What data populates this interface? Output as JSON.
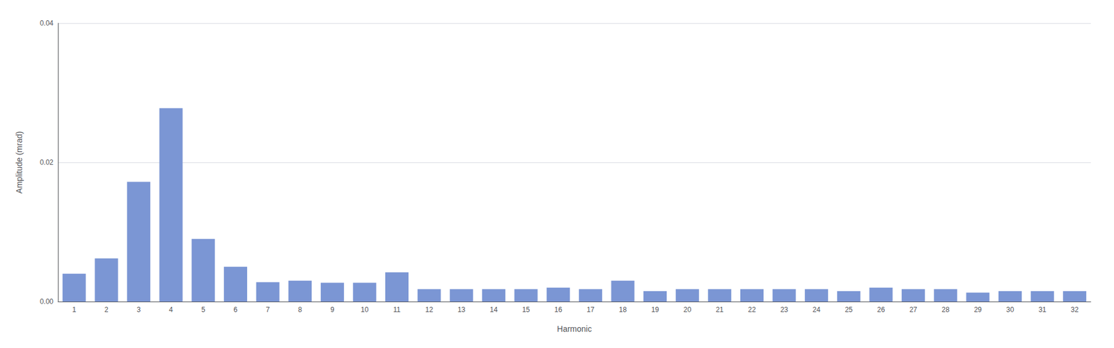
{
  "chart_data": {
    "type": "bar",
    "xlabel": "Harmonic",
    "ylabel": "Amplitude (mrad)",
    "categories": [
      "1",
      "2",
      "3",
      "4",
      "5",
      "6",
      "7",
      "8",
      "9",
      "10",
      "11",
      "12",
      "13",
      "14",
      "15",
      "16",
      "17",
      "18",
      "19",
      "20",
      "21",
      "22",
      "23",
      "24",
      "25",
      "26",
      "27",
      "28",
      "29",
      "30",
      "31",
      "32"
    ],
    "values": [
      0.004,
      0.0062,
      0.0172,
      0.0278,
      0.009,
      0.005,
      0.0028,
      0.003,
      0.0027,
      0.0027,
      0.0042,
      0.0018,
      0.0018,
      0.0018,
      0.0018,
      0.002,
      0.0018,
      0.003,
      0.0015,
      0.0018,
      0.0018,
      0.0018,
      0.0018,
      0.0018,
      0.0015,
      0.002,
      0.0018,
      0.0018,
      0.0013,
      0.0015,
      0.0015,
      0.0015
    ],
    "color": "#7B96D4",
    "ylim": [
      0,
      0.04
    ],
    "yticks": [
      {
        "value": 0,
        "label": "0.00"
      },
      0.02,
      0.04
    ],
    "grid": true
  }
}
